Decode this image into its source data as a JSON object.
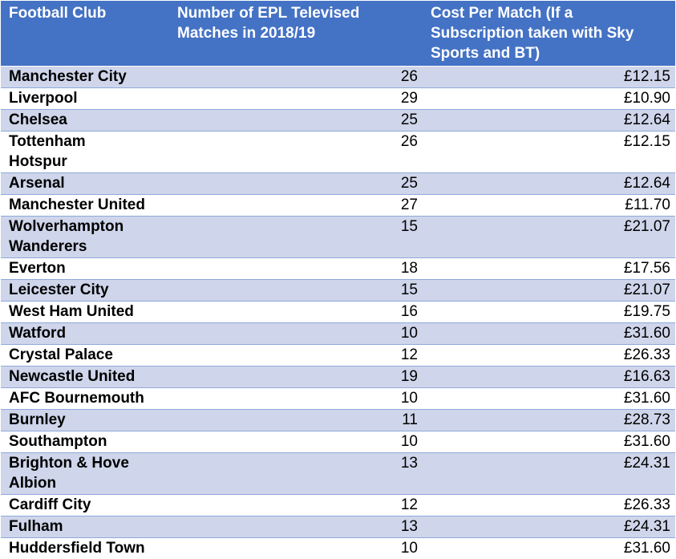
{
  "table": {
    "headers": [
      "Football Club",
      "Number of EPL Televised Matches in 2018/19",
      "Cost Per Match (If a Subscription taken with Sky Sports and BT)"
    ],
    "rows": [
      [
        "Manchester City",
        26,
        "£12.15"
      ],
      [
        "Liverpool",
        29,
        "£10.90"
      ],
      [
        "Chelsea",
        25,
        "£12.64"
      ],
      [
        "Tottenham Hotspur",
        26,
        "£12.15"
      ],
      [
        "Arsenal",
        25,
        "£12.64"
      ],
      [
        "Manchester United",
        27,
        "£11.70"
      ],
      [
        "Wolverhampton Wanderers",
        15,
        "£21.07"
      ],
      [
        "Everton",
        18,
        "£17.56"
      ],
      [
        "Leicester City",
        15,
        "£21.07"
      ],
      [
        "West Ham United",
        16,
        "£19.75"
      ],
      [
        "Watford",
        10,
        "£31.60"
      ],
      [
        "Crystal Palace",
        12,
        "£26.33"
      ],
      [
        "Newcastle United",
        19,
        "£16.63"
      ],
      [
        "AFC Bournemouth",
        10,
        "£31.60"
      ],
      [
        "Burnley",
        11,
        "£28.73"
      ],
      [
        "Southampton",
        10,
        "£31.60"
      ],
      [
        "Brighton & Hove Albion",
        13,
        "£24.31"
      ],
      [
        "Cardiff City",
        12,
        "£26.33"
      ],
      [
        "Fulham",
        13,
        "£24.31"
      ],
      [
        "Huddersfield Town",
        10,
        "£31.60"
      ]
    ]
  }
}
